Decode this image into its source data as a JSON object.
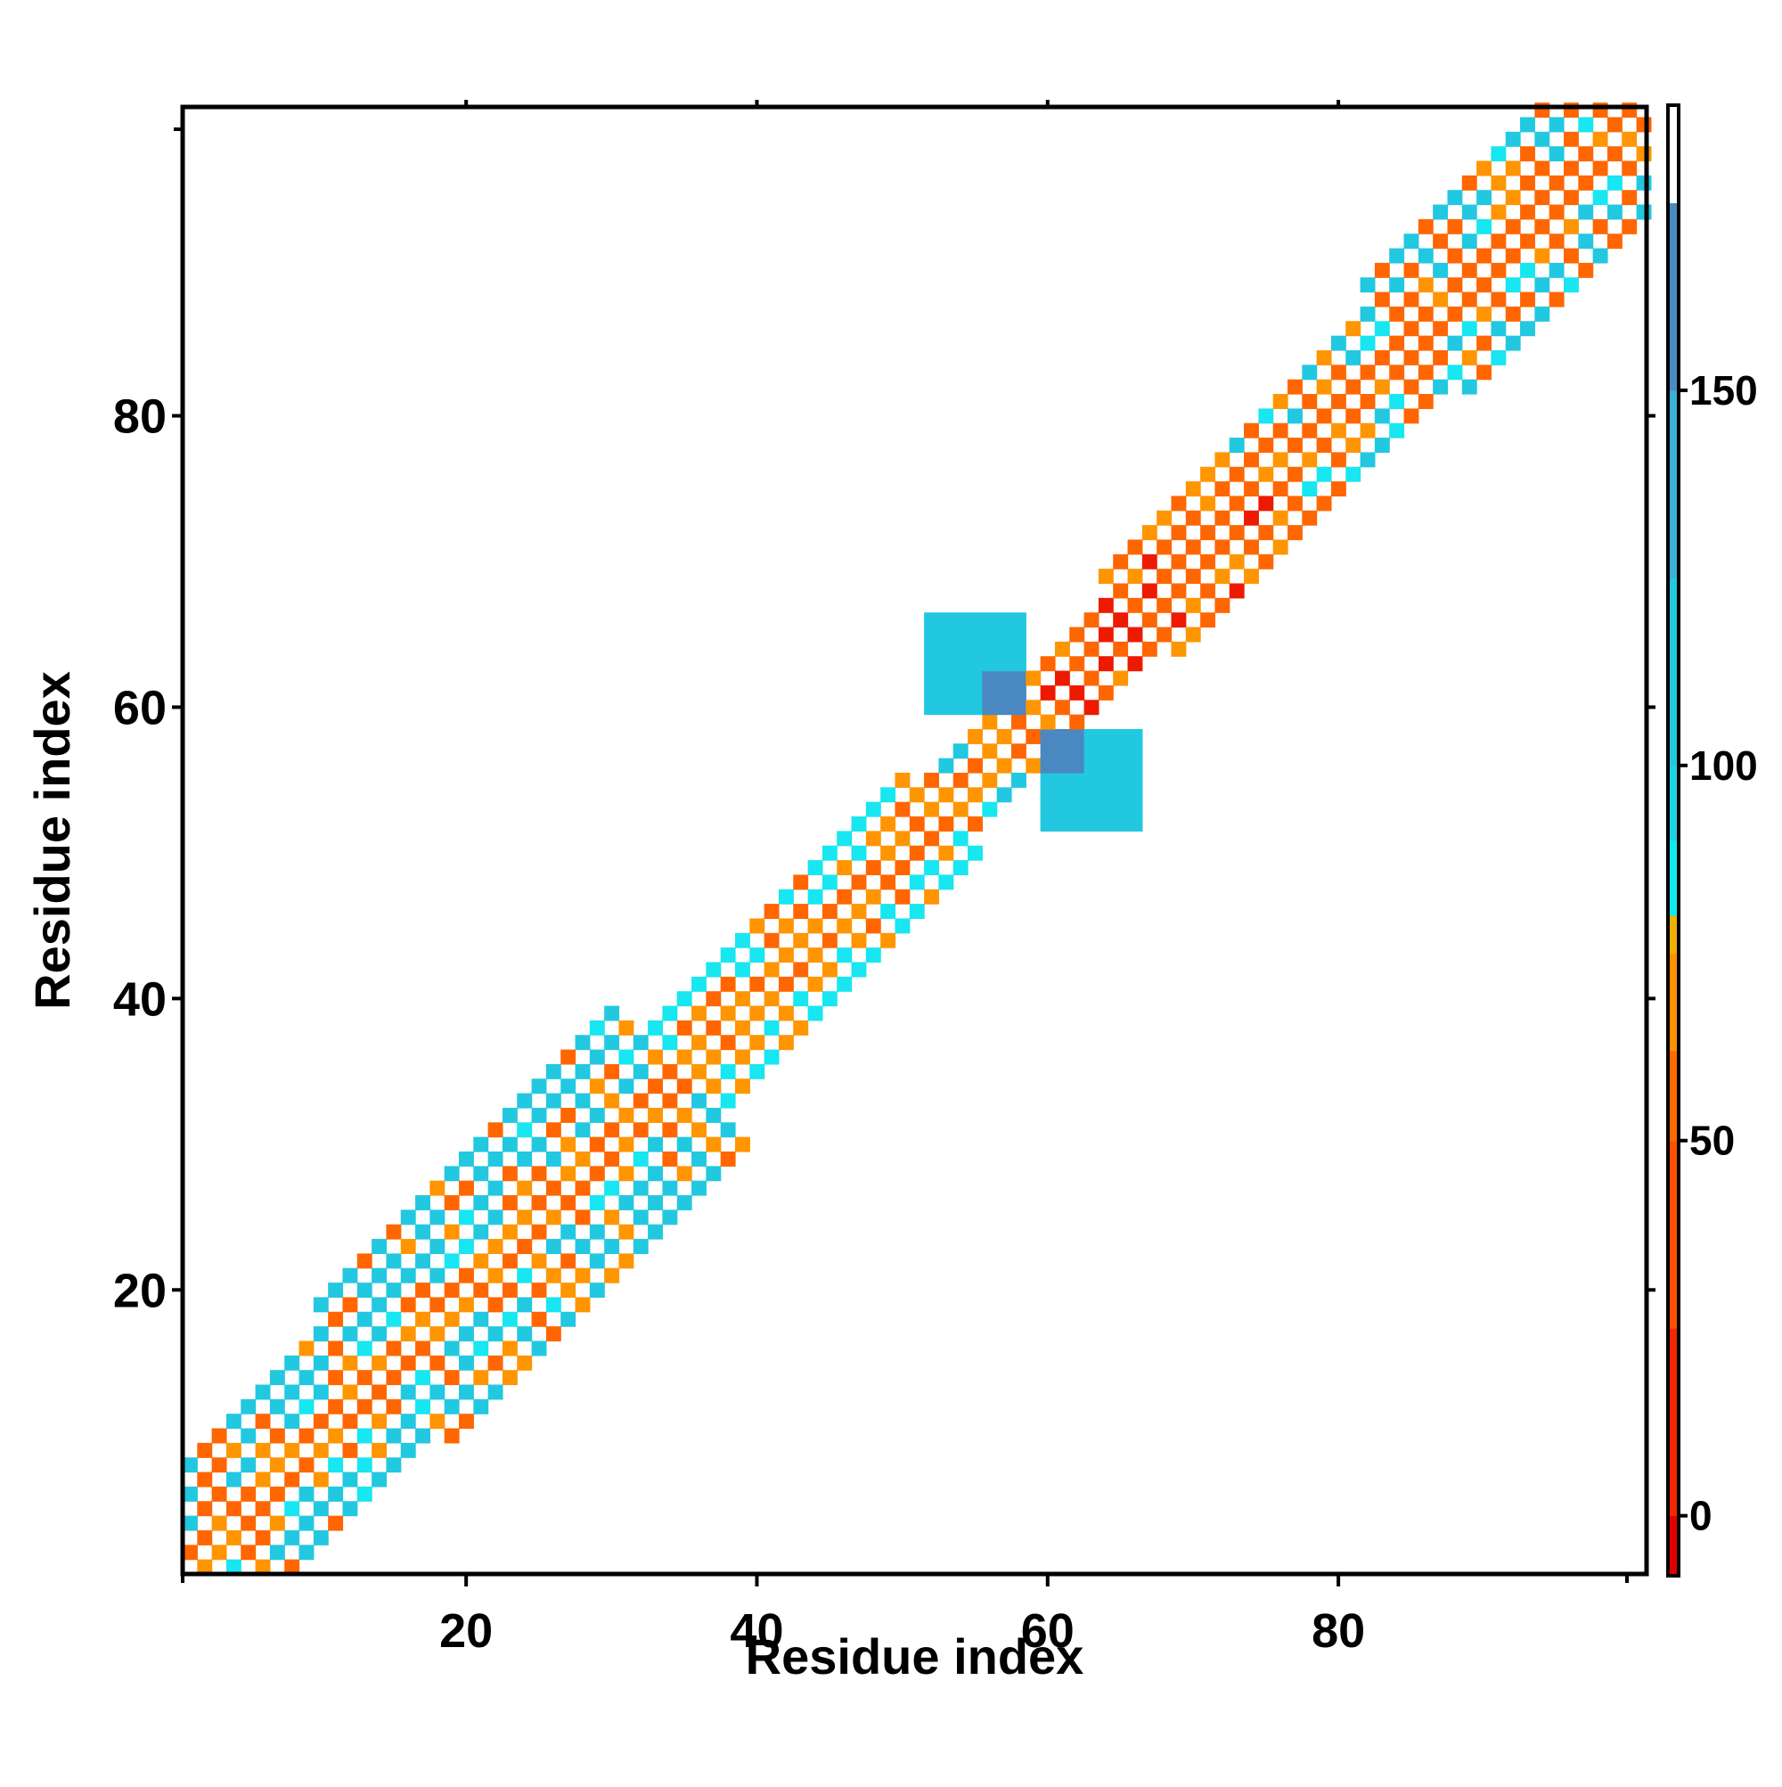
{
  "chart_data": {
    "type": "heatmap",
    "title": "",
    "xlabel": "Residue index",
    "ylabel": "Residue index",
    "xlim": [
      1,
      101
    ],
    "ylim": [
      1,
      101
    ],
    "x_ticks": [
      20,
      40,
      60,
      80
    ],
    "y_ticks": [
      20,
      40,
      60,
      80
    ],
    "colorbar": {
      "range": [
        -8,
        188
      ],
      "ticks": [
        0,
        50,
        100,
        150
      ],
      "bands": [
        {
          "from": -8,
          "to": 0,
          "color": "#e00000"
        },
        {
          "from": 0,
          "to": 25,
          "color": "#f02800"
        },
        {
          "from": 25,
          "to": 50,
          "color": "#ff5000"
        },
        {
          "from": 50,
          "to": 62,
          "color": "#ff6a00"
        },
        {
          "from": 62,
          "to": 75,
          "color": "#ff9200"
        },
        {
          "from": 75,
          "to": 80,
          "color": "#f0b000"
        },
        {
          "from": 80,
          "to": 90,
          "color": "#10e8f0"
        },
        {
          "from": 90,
          "to": 100,
          "color": "#1ed2e6"
        },
        {
          "from": 100,
          "to": 125,
          "color": "#22c8e0"
        },
        {
          "from": 125,
          "to": 150,
          "color": "#3ab0d8"
        },
        {
          "from": 150,
          "to": 175,
          "color": "#4a8cc0"
        },
        {
          "from": 175,
          "to": 188,
          "color": "#ffffff"
        }
      ]
    },
    "cell_colors": {
      "red": "#ee1a00",
      "orange": "#ff6600",
      "amber": "#ff9500",
      "cyan": "#18e6f0",
      "sky": "#22c8e0",
      "steel": "#3a9ed6",
      "steel_dark": "#4a88c2"
    },
    "band_half_width": [
      {
        "from": 1,
        "to": 14,
        "width": 8
      },
      {
        "from": 15,
        "to": 35,
        "width": 9
      },
      {
        "from": 36,
        "to": 53,
        "width": 5
      },
      {
        "from": 54,
        "to": 66,
        "width": 4
      },
      {
        "from": 67,
        "to": 85,
        "width": 5
      },
      {
        "from": 86,
        "to": 101,
        "width": 8
      }
    ],
    "cross_regions": [
      {
        "i_from": 52,
        "i_to": 58,
        "j_from": 60,
        "j_to": 66,
        "value": 125
      },
      {
        "i_from": 56,
        "i_to": 58,
        "j_from": 60,
        "j_to": 62,
        "value": 160
      },
      {
        "i_from": 60,
        "i_to": 66,
        "j_from": 52,
        "j_to": 58,
        "value": 125
      },
      {
        "i_from": 60,
        "i_to": 62,
        "j_from": 56,
        "j_to": 58,
        "value": 160
      }
    ],
    "segment_value_ranges": [
      {
        "from": 1,
        "to": 35,
        "near": [
          30,
          65
        ],
        "far": [
          80,
          125
        ]
      },
      {
        "from": 36,
        "to": 53,
        "near": [
          40,
          70
        ],
        "far": [
          80,
          100
        ]
      },
      {
        "from": 54,
        "to": 60,
        "near": [
          40,
          70
        ],
        "far": [
          80,
          125
        ]
      },
      {
        "from": 61,
        "to": 75,
        "near": [
          -5,
          40
        ],
        "far": [
          40,
          70
        ]
      },
      {
        "from": 76,
        "to": 85,
        "near": [
          20,
          65
        ],
        "far": [
          80,
          125
        ]
      },
      {
        "from": 86,
        "to": 101,
        "near": [
          10,
          65
        ],
        "far": [
          80,
          125
        ]
      }
    ],
    "legend": "colorbar-right"
  }
}
